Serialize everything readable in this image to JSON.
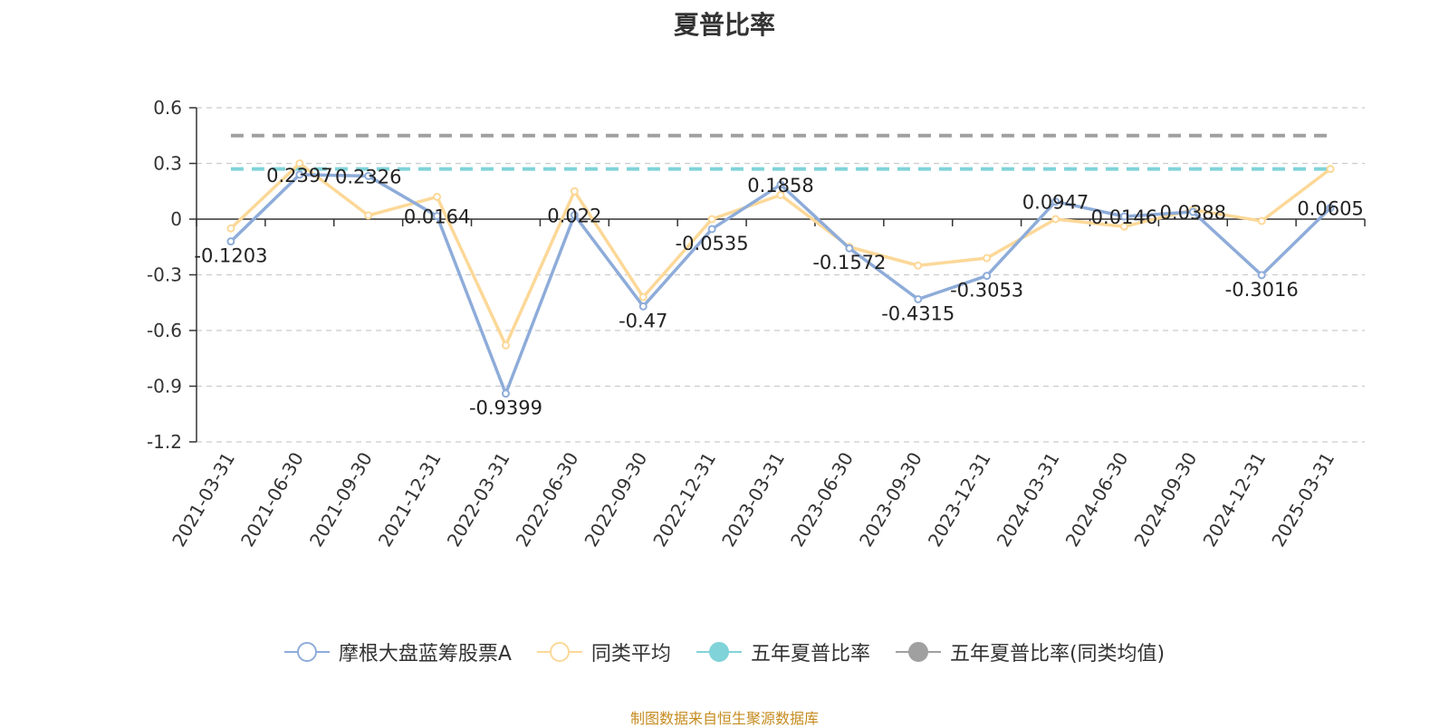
{
  "title": "夏普比率",
  "source": "制图数据来自恒生聚源数据库",
  "colors": {
    "fund": "#8eacd9",
    "peer": "#fcd898",
    "five_year": "#80d3d8",
    "five_year_peer": "#a0a0a0",
    "grid": "#cccccc",
    "axis": "#333333"
  },
  "chart_data": {
    "type": "line",
    "title": "夏普比率",
    "xlabel": "",
    "ylabel": "",
    "ylim": [
      -1.2,
      0.6
    ],
    "yticks": [
      0.6,
      0.3,
      0,
      -0.3,
      -0.6,
      -0.9,
      -1.2
    ],
    "ytick_labels": [
      "0.6",
      "0.3",
      "0",
      "-0.3",
      "-0.6",
      "-0.9",
      "-1.2"
    ],
    "grid": true,
    "legend_position": "bottom-center",
    "categories": [
      "2021-03-31",
      "2021-06-30",
      "2021-09-30",
      "2021-12-31",
      "2022-03-31",
      "2022-06-30",
      "2022-09-30",
      "2022-12-31",
      "2023-03-31",
      "2023-06-30",
      "2023-09-30",
      "2023-12-31",
      "2024-03-31",
      "2024-06-30",
      "2024-09-30",
      "2024-12-31",
      "2025-03-31"
    ],
    "series": [
      {
        "name": "摩根大盘蓝筹股票A",
        "color": "#8eacd9",
        "values": [
          -0.1203,
          0.2397,
          0.2326,
          0.0164,
          -0.9399,
          0.022,
          -0.47,
          -0.0535,
          0.1858,
          -0.1572,
          -0.4315,
          -0.3053,
          0.0947,
          0.0146,
          0.0388,
          -0.3016,
          0.0605
        ],
        "labels": [
          "-0.1203",
          "0.2397",
          "0.2326",
          "0.0164",
          "-0.9399",
          "0.022",
          "-0.47",
          "-0.0535",
          "0.1858",
          "-0.1572",
          "-0.4315",
          "-0.3053",
          "0.0947",
          "0.0146",
          "0.0388",
          "-0.3016",
          "0.0605"
        ]
      },
      {
        "name": "同类平均",
        "color": "#fcd898",
        "values": [
          -0.05,
          0.3,
          0.02,
          0.12,
          -0.68,
          0.15,
          -0.42,
          0.0,
          0.13,
          -0.15,
          -0.25,
          -0.21,
          0.0,
          -0.04,
          0.05,
          -0.01,
          0.27
        ]
      },
      {
        "name": "五年夏普比率",
        "color": "#80d3d8",
        "type": "reference_line",
        "value": 0.27
      },
      {
        "name": "五年夏普比率(同类均值)",
        "color": "#a0a0a0",
        "type": "reference_line",
        "value": 0.45
      }
    ]
  }
}
